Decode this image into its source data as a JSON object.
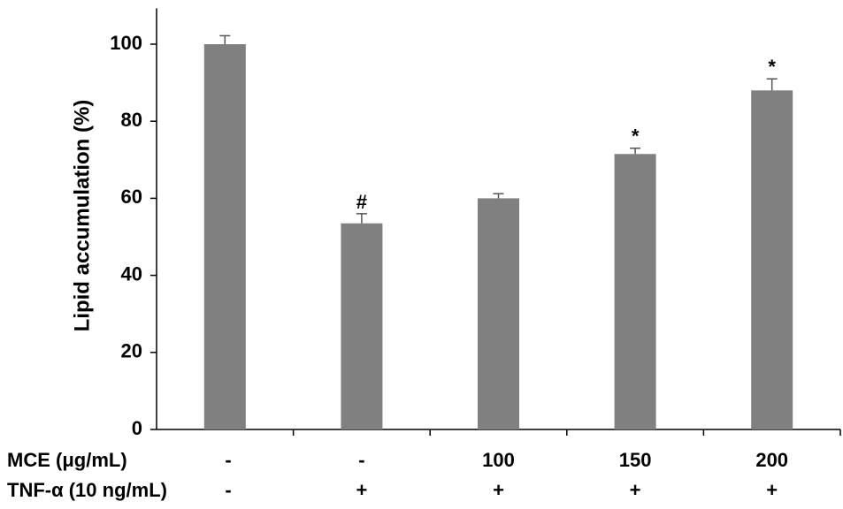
{
  "chart_data": {
    "type": "bar",
    "ylabel": "Lipid accumulation (%)",
    "ylim": [
      0,
      110
    ],
    "yticks": [
      0,
      20,
      40,
      60,
      80,
      100
    ],
    "grid": false,
    "bar_color": "#808080",
    "bars": [
      {
        "value": 100,
        "error": 2.2,
        "annotation": ""
      },
      {
        "value": 53.5,
        "error": 2.5,
        "annotation": "#"
      },
      {
        "value": 60,
        "error": 1.2,
        "annotation": ""
      },
      {
        "value": 71.5,
        "error": 1.5,
        "annotation": "*"
      },
      {
        "value": 88,
        "error": 3,
        "annotation": "*"
      }
    ],
    "treatment_rows": [
      {
        "label": "MCE (μg/mL)",
        "values": [
          "-",
          "-",
          "100",
          "150",
          "200"
        ]
      },
      {
        "label": "TNF-α (10 ng/mL)",
        "values": [
          "-",
          "+",
          "+",
          "+",
          "+"
        ]
      }
    ]
  }
}
